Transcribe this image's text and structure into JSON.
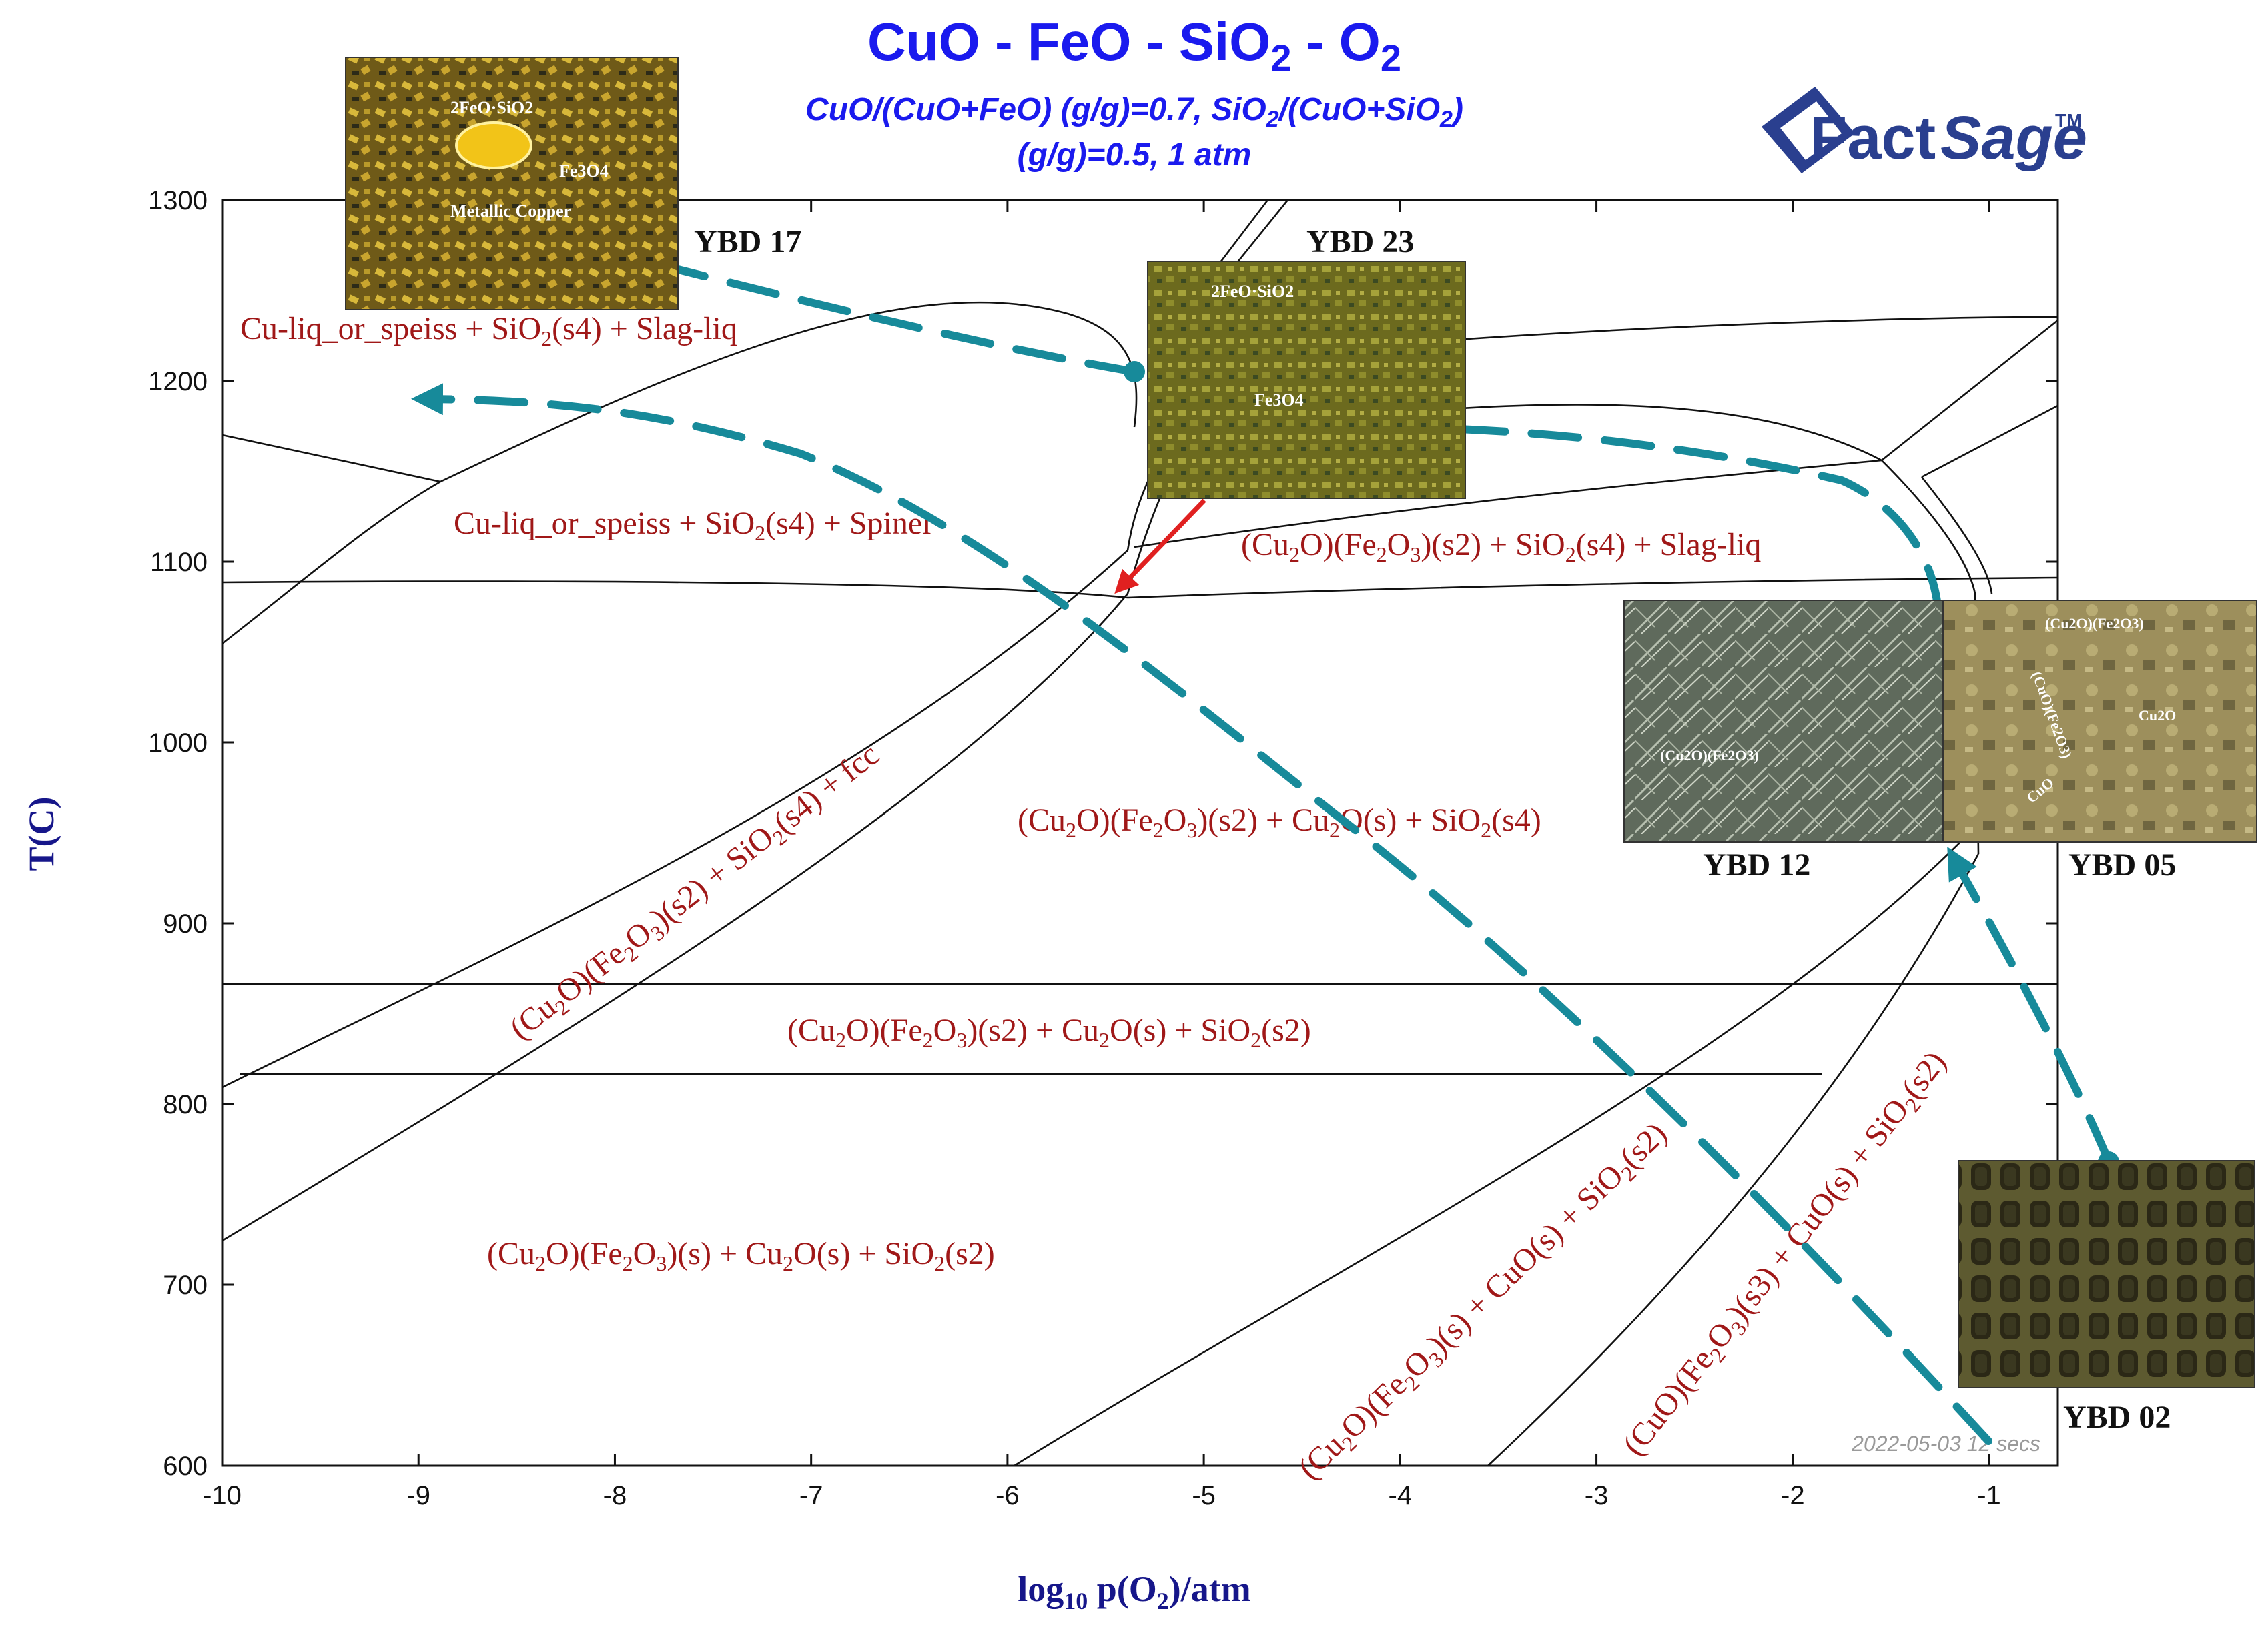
{
  "title": {
    "main": "CuO - FeO - SiO",
    "main_sub2": "2",
    "main_tail": " - O",
    "main_sub2b": "2",
    "line2_a": "CuO/(CuO+FeO) (g/g)=0.7, SiO",
    "line2_sub": "2",
    "line2_b": "/(CuO+SiO",
    "line2_sub2": "2",
    "line2_c": ")",
    "line3": "(g/g)=0.5, 1 atm"
  },
  "logo": {
    "text_a": "Fact",
    "text_b": "Sage",
    "tm": "TM"
  },
  "stamp": "2022-05-03  12 secs",
  "colors": {
    "title": "#1a1aee",
    "region_label": "#a01818",
    "path": "#178a9a",
    "arrow_red": "#e02020",
    "axis_label": "#16168a"
  },
  "chart_data": {
    "type": "phase-diagram",
    "xlabel": "log10 p(O2)/atm",
    "ylabel": "T(C)",
    "xlim": [
      -10,
      -0.65
    ],
    "ylim": [
      600,
      1300
    ],
    "x_ticks": [
      "-10",
      "-9",
      "-8",
      "-7",
      "-6",
      "-5",
      "-4",
      "-3",
      "-2",
      "-1"
    ],
    "y_ticks": [
      "600",
      "700",
      "800",
      "900",
      "1000",
      "1100",
      "1200",
      "1300"
    ],
    "x_tick_values": [
      -10,
      -9,
      -8,
      -7,
      -6,
      -5,
      -4,
      -3,
      -2,
      -1
    ],
    "y_tick_values": [
      600,
      700,
      800,
      900,
      1000,
      1100,
      1200,
      1300
    ],
    "region_labels": [
      {
        "text": "Cu-liq_or_speiss + SiO2(s4) + Slag-liq",
        "x": -9.0,
        "y": 1228
      },
      {
        "text": "Cu-liq_or_speiss + SiO2(s4) + Spinel",
        "x": -8.1,
        "y": 1122
      },
      {
        "text": "(Cu2O)(Fe2O3)(s2) + SiO2(s4) + Slag-liq",
        "x": -3.0,
        "y": 1106
      },
      {
        "text": "(Cu2O)(Fe2O3)(s2) + Cu2O(s) + SiO2(s4)",
        "x": -3.0,
        "y": 957
      },
      {
        "text": "(Cu2O)(Fe2O3)(s2) + SiO2(s4) + fcc",
        "x": -7.8,
        "y": 930
      },
      {
        "text": "(Cu2O)(Fe2O3)(s2) + Cu2O(s) + SiO2(s2)",
        "x": -5.5,
        "y": 838
      },
      {
        "text": "(Cu2O)(Fe2O3)(s) + Cu2O(s) + SiO2(s2)",
        "x": -7.6,
        "y": 713
      },
      {
        "text": "(Cu2O)(Fe2O3)(s) + CuO(s) + SiO2(s2)",
        "x": -3.5,
        "y": 680
      },
      {
        "text": "(CuO)(Fe2O3)(s3) + CuO(s) + SiO2(s2)",
        "x": -2.0,
        "y": 680
      }
    ],
    "samples": [
      {
        "name": "YBD 17",
        "image_labels": [
          "2FeO·SiO2",
          "Fe3O4",
          "Metallic Copper"
        ]
      },
      {
        "name": "YBD 23",
        "image_labels": [
          "2FeO·SiO2",
          "Fe3O4"
        ]
      },
      {
        "name": "YBD 12",
        "image_labels": [
          "(Cu2O)(Fe2O3)"
        ]
      },
      {
        "name": "YBD 05",
        "image_labels": [
          "(Cu2O)(Fe2O3)",
          "(CuO)(Fe2O3)",
          "Cu2O",
          "CuO"
        ]
      },
      {
        "name": "YBD 02",
        "image_labels": []
      }
    ],
    "paths": [
      {
        "name": "YBD 23 to YBD 17",
        "points": [
          [
            -5.35,
            1205
          ],
          [
            -7.0,
            1240
          ],
          [
            -7.9,
            1265
          ]
        ]
      },
      {
        "name": "cooling trajectory",
        "points": [
          [
            -7.6,
            1190
          ],
          [
            -5.8,
            1095
          ],
          [
            -3.4,
            800
          ],
          [
            -1.6,
            620
          ]
        ]
      },
      {
        "name": "YBD 05 to YBD 23",
        "points": [
          [
            -1.35,
            1077
          ],
          [
            -1.8,
            1150
          ],
          [
            -4.5,
            1175
          ]
        ]
      },
      {
        "name": "YBD 02 to YBD 05",
        "points": [
          [
            -0.76,
            774
          ],
          [
            -1.0,
            860
          ],
          [
            -1.2,
            958
          ]
        ]
      }
    ]
  }
}
